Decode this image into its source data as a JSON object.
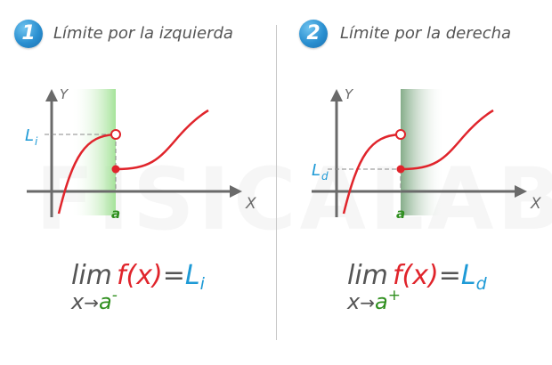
{
  "panels": [
    {
      "number": "1",
      "title": "Límite por la izquierda",
      "y_label": "Y",
      "x_label": "X",
      "a_label": "a",
      "limit_label": "L",
      "limit_sub": "i",
      "formula": {
        "lim": "lim",
        "f": "f(x)",
        "eq": "=",
        "L": "L",
        "Lsub": "i",
        "x": "x",
        "arrow": "→",
        "a": "a",
        "sign": "-"
      }
    },
    {
      "number": "2",
      "title": "Límite por la derecha",
      "y_label": "Y",
      "x_label": "X",
      "a_label": "a",
      "limit_label": "L",
      "limit_sub": "d",
      "formula": {
        "lim": "lim",
        "f": "f(x)",
        "eq": "=",
        "L": "L",
        "Lsub": "d",
        "x": "x",
        "arrow": "→",
        "a": "a",
        "sign": "+"
      }
    }
  ],
  "watermark": "FISICALAB",
  "colors": {
    "curve": "#e0242b",
    "axis": "#6a6a6a",
    "limit_label": "#1e9ad6",
    "a_label": "#2f8f1e",
    "badge": "#2a8fd0",
    "shade_left": "#9be08e",
    "shade_right": "#7fa983"
  }
}
